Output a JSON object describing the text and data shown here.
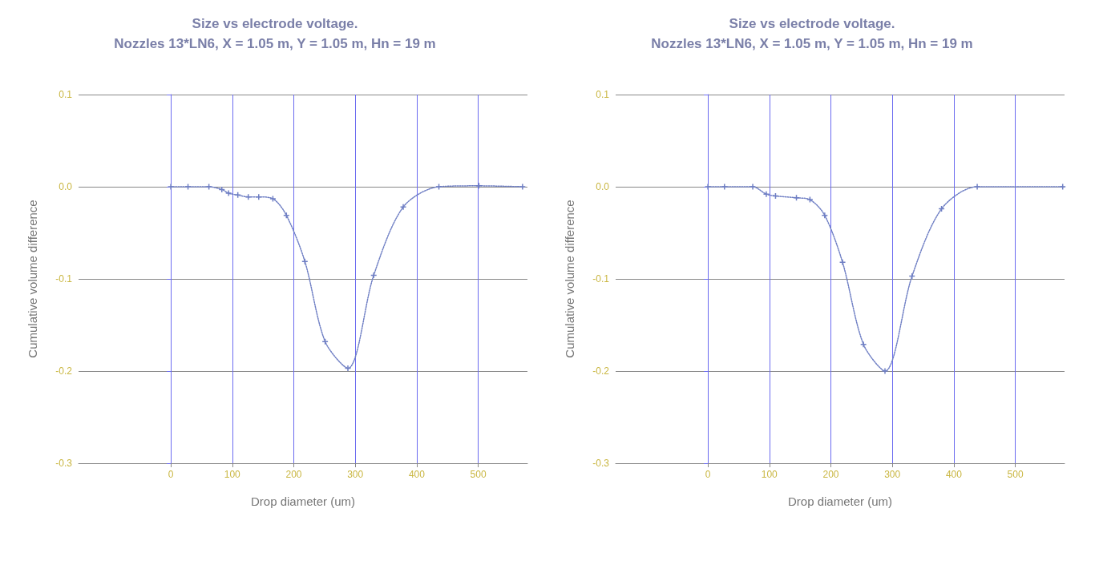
{
  "chart_data": [
    {
      "type": "line",
      "title": "Size vs electrode voltage.",
      "subtitle": "Nozzles 13*LN6, X = 1.05 m, Y = 1.05 m, Hn = 19 m",
      "xlabel": "Drop diameter (um)",
      "ylabel": "Cumulative volume difference",
      "series": [
        {
          "color": "#6f7fc4",
          "x": [
            0,
            28,
            62,
            83,
            94,
            109,
            126,
            143,
            166,
            188,
            218,
            251,
            288,
            330,
            378,
            436,
            501,
            572
          ],
          "values": [
            0,
            0,
            0,
            -0.003,
            -0.007,
            -0.009,
            -0.011,
            -0.011,
            -0.013,
            -0.031,
            -0.081,
            -0.168,
            -0.197,
            -0.096,
            -0.022,
            0,
            0.001,
            0
          ]
        }
      ],
      "xlim": [
        -150,
        580
      ],
      "xticks": [
        0,
        100,
        200,
        300,
        400,
        500
      ],
      "ylim": [
        -0.3,
        0.1
      ],
      "yticks": [
        {
          "value": 0.1,
          "label": "0.1"
        },
        {
          "value": 0,
          "label": "0.0"
        },
        {
          "value": -0.1,
          "label": "-0.1"
        },
        {
          "value": -0.2,
          "label": "-0.2"
        },
        {
          "value": -0.3,
          "label": "-0.3"
        }
      ],
      "grid": true,
      "marker": "cross",
      "line_style": "dotted"
    },
    {
      "type": "line",
      "title": "Size vs electrode voltage.",
      "subtitle": "Nozzles 13*LN6, X = 1.05 m, Y = 1.05 m, Hn = 19 m",
      "xlabel": "Drop diameter (um)",
      "ylabel": "Cumulative volume difference",
      "series": [
        {
          "color": "#6f7fc4",
          "x": [
            0,
            27,
            73,
            95,
            110,
            144,
            166,
            190,
            219,
            253,
            288,
            332,
            380,
            438,
            577
          ],
          "values": [
            0,
            0,
            0,
            -0.008,
            -0.01,
            -0.012,
            -0.014,
            -0.031,
            -0.082,
            -0.171,
            -0.2,
            -0.097,
            -0.024,
            0,
            0
          ]
        }
      ],
      "xlim": [
        -150,
        580
      ],
      "xticks": [
        0,
        100,
        200,
        300,
        400,
        500
      ],
      "ylim": [
        -0.3,
        0.1
      ],
      "yticks": [
        {
          "value": 0.1,
          "label": "0.1"
        },
        {
          "value": 0,
          "label": "0.0"
        },
        {
          "value": -0.1,
          "label": "-0.1"
        },
        {
          "value": -0.2,
          "label": "-0.2"
        },
        {
          "value": -0.3,
          "label": "-0.3"
        }
      ],
      "grid": true,
      "marker": "cross",
      "line_style": "dotted"
    }
  ]
}
